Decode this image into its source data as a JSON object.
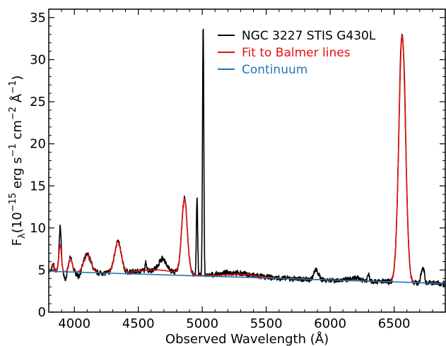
{
  "chart_data": {
    "type": "line",
    "xlabel": "Observed Wavelength (Å)",
    "ylabel": {
      "base": "F",
      "sub": "λ",
      "rest1": "(10",
      "sup1": "−15",
      "rest2": " erg s",
      "sup2": "−1",
      "rest3": " cm",
      "sup3": "−2",
      "rest4": " Å",
      "sup4": "−1",
      "rest5": ")"
    },
    "xlim": [
      3800,
      6900
    ],
    "ylim": [
      0,
      36
    ],
    "x_ticks": [
      4000,
      4500,
      5000,
      5500,
      6000,
      6500
    ],
    "x_tick_labels": [
      "4000",
      "4500",
      "5000",
      "5500",
      "6000",
      "6500"
    ],
    "y_ticks": [
      0,
      5,
      10,
      15,
      20,
      25,
      30,
      35
    ],
    "y_tick_labels": [
      "0",
      "5",
      "10",
      "15",
      "20",
      "25",
      "30",
      "35"
    ],
    "legend_position": "top-right",
    "continuum": {
      "x": [
        3800,
        6900
      ],
      "y": [
        4.85,
        3.4
      ]
    },
    "lines": [
      {
        "center": 3835,
        "width": 8,
        "height": 0.8
      },
      {
        "center": 3889,
        "width": 10,
        "height": 3.2
      },
      {
        "center": 3970,
        "width": 14,
        "height": 1.6
      },
      {
        "center": 4102,
        "width": 28,
        "height": 2.1
      },
      {
        "center": 4340,
        "width": 26,
        "height": 3.7
      },
      {
        "center": 4861,
        "width": 22,
        "height": 8.9
      },
      {
        "center": 6563,
        "width": 26,
        "height": 29.3
      }
    ],
    "series": [
      {
        "name": "NGC 3227 STIS G430L",
        "color": "#000000",
        "features": [
          {
            "center": 3889,
            "width": 6,
            "height": 2.2
          },
          {
            "center": 3930,
            "width": 10,
            "height": -0.9
          },
          {
            "center": 4034,
            "width": 12,
            "height": -0.6
          },
          {
            "center": 4560,
            "width": 6,
            "height": 0.9
          },
          {
            "center": 4690,
            "width": 28,
            "height": 1.4
          },
          {
            "center": 4959,
            "width": 5,
            "height": 9.3
          },
          {
            "center": 5007,
            "width": 5,
            "height": 29.6
          },
          {
            "center": 5200,
            "width": 80,
            "height": 0.2
          },
          {
            "center": 5890,
            "width": 18,
            "height": 1.1
          },
          {
            "center": 6300,
            "width": 8,
            "height": 0.8
          },
          {
            "center": 6548,
            "width": 6,
            "height": 0.9
          },
          {
            "center": 6583,
            "width": 6,
            "height": 1.1
          },
          {
            "center": 6716,
            "width": 8,
            "height": 1.2
          },
          {
            "center": 6731,
            "width": 8,
            "height": 1.4
          },
          {
            "center": 6200,
            "width": 40,
            "height": 0.3
          }
        ]
      },
      {
        "name": "Fit to Balmer lines",
        "color": "#e8100c"
      },
      {
        "name": "Continuum",
        "color": "#1f77b4"
      }
    ]
  }
}
